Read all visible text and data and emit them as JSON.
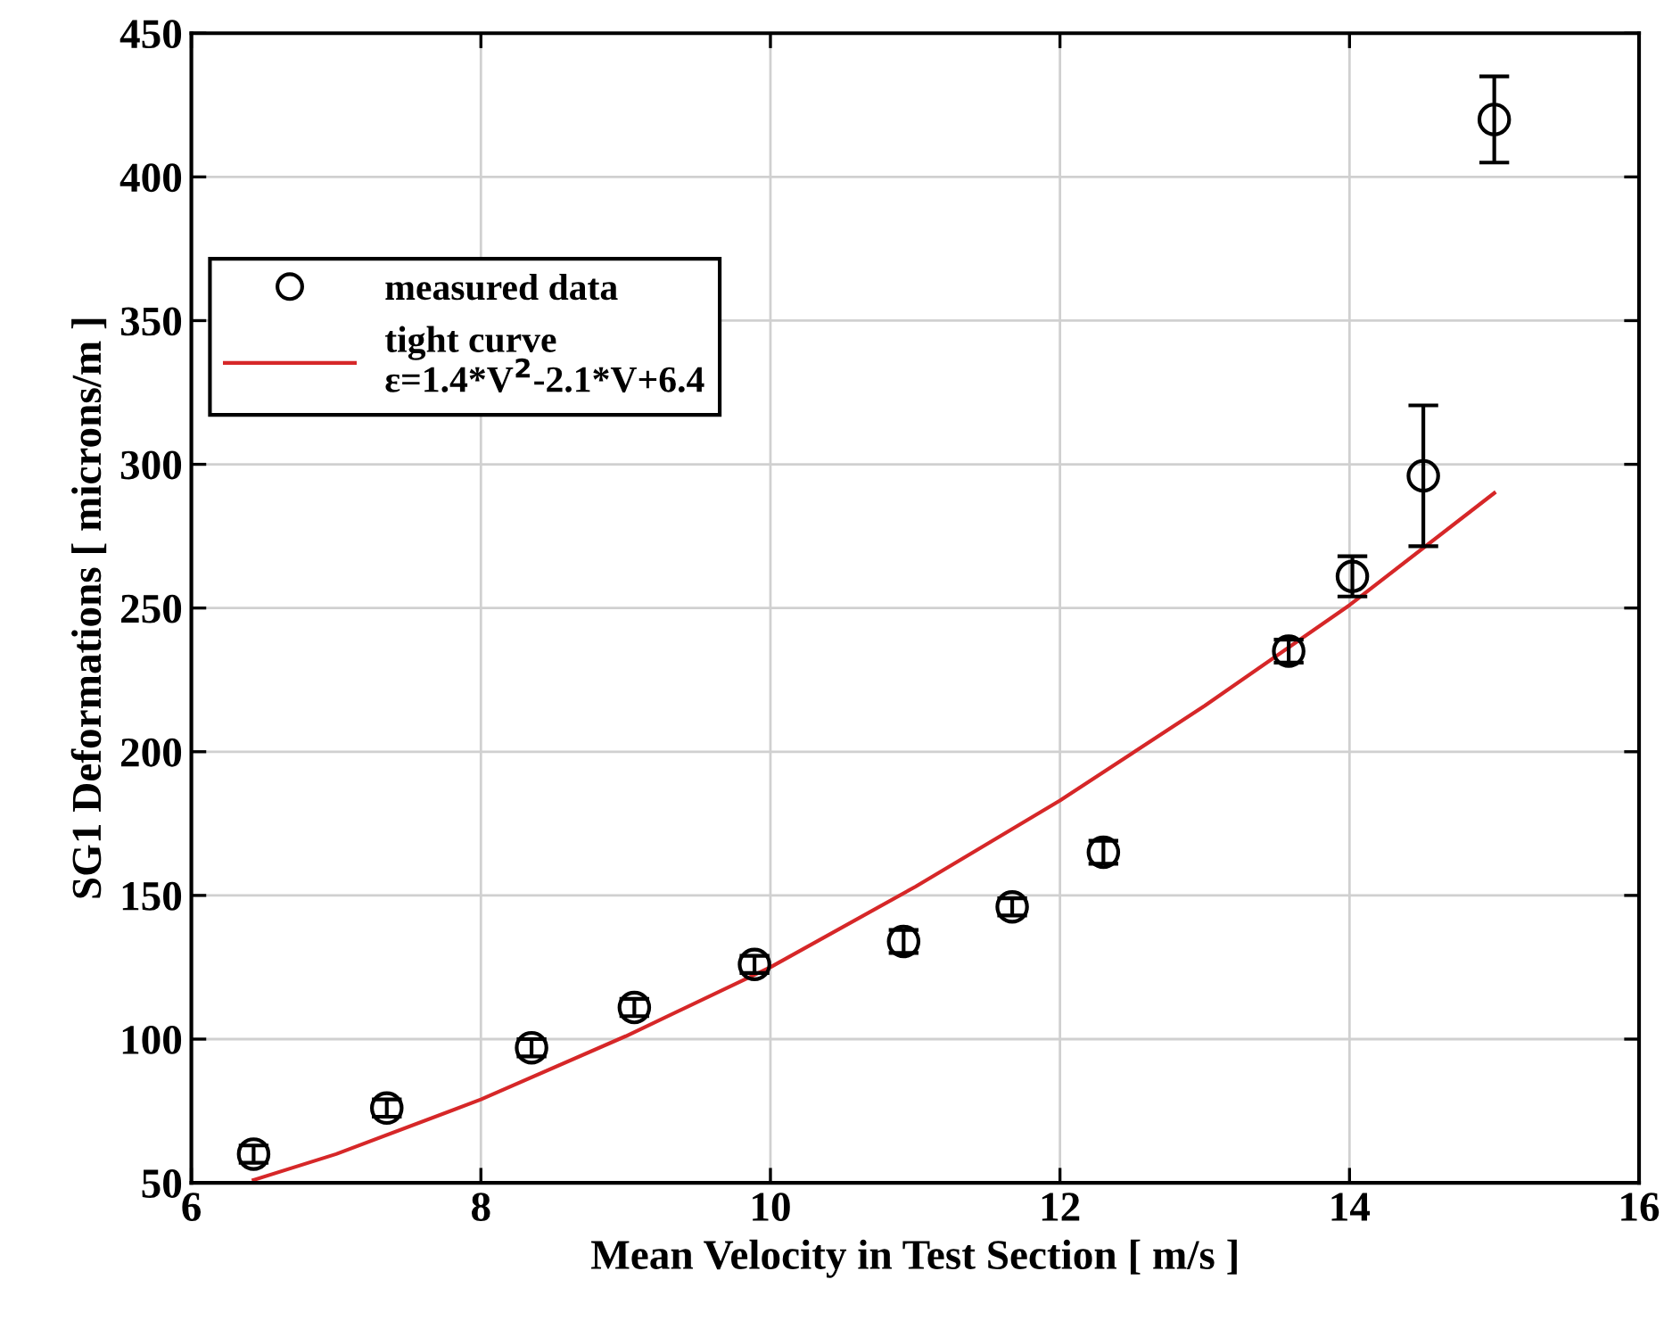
{
  "chart_data": {
    "type": "scatter",
    "xlabel": "Mean Velocity in Test Section [ m/s ]",
    "ylabel": "SG1 Deformations [ microns/m ]",
    "xlim": [
      6,
      16
    ],
    "xticks": [
      6,
      8,
      10,
      12,
      14,
      16
    ],
    "ylim": [
      50,
      450
    ],
    "yticks": [
      50,
      100,
      150,
      200,
      250,
      300,
      350,
      400,
      450
    ],
    "grid": true,
    "legend": "top left",
    "series": [
      {
        "name": "measured data",
        "color": "#000000",
        "marker": "circle",
        "x": [
          6.43,
          7.35,
          8.35,
          9.06,
          9.89,
          10.92,
          11.67,
          12.3,
          13.58,
          14.02,
          14.51,
          15.0
        ],
        "values": [
          60,
          76,
          97,
          111,
          126,
          134,
          146,
          165,
          235,
          261,
          296,
          420
        ],
        "errors": [
          3,
          3,
          3,
          3,
          3,
          4,
          3,
          4,
          4,
          7,
          24.5,
          15
        ]
      },
      {
        "name": "tight curve\nε=1.4*V$^{2}$-2.1*V+6.4",
        "type": "line",
        "color": "#d62728",
        "marker": "none",
        "line_style": "solid",
        "x": [
          6.43,
          7,
          8,
          9,
          10,
          11,
          12,
          13,
          14,
          15
        ],
        "values": [
          51,
          60,
          79,
          101,
          125,
          153,
          183,
          216,
          251,
          290
        ]
      }
    ]
  }
}
